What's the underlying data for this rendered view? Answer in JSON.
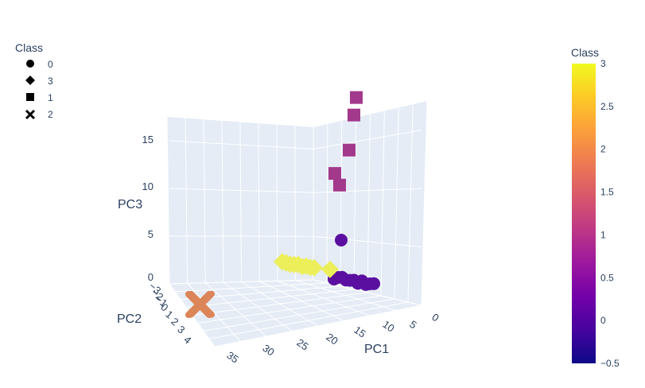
{
  "legend": {
    "title": "Class",
    "items": [
      {
        "symbol": "circle",
        "label": "0"
      },
      {
        "symbol": "diamond",
        "label": "3"
      },
      {
        "symbol": "square",
        "label": "1"
      },
      {
        "symbol": "x",
        "label": "2"
      }
    ]
  },
  "colorbar": {
    "title": "Class",
    "ticks": [
      "3",
      "2.5",
      "2",
      "1.5",
      "1",
      "0.5",
      "0",
      "−0.5"
    ],
    "colors": [
      "#f0f921",
      "#fdca26",
      "#fb9f3a",
      "#ed7953",
      "#d8576b",
      "#bd3786",
      "#9c179e",
      "#7201a8",
      "#46039f",
      "#0d0887"
    ]
  },
  "chart_data": {
    "type": "scatter",
    "title": "",
    "xlabel": "PC1",
    "ylabel": "PC2",
    "zlabel": "PC3",
    "x_ticks": [
      "0",
      "5",
      "10",
      "15",
      "20",
      "25",
      "30",
      "35"
    ],
    "y_ticks": [
      "−3",
      "−2",
      "−1",
      "0",
      "1",
      "2",
      "3",
      "4"
    ],
    "z_ticks": [
      "0",
      "5",
      "10",
      "15"
    ],
    "zlim": [
      0,
      17
    ],
    "class_colors": {
      "0": "#5a0fa0",
      "1": "#a3398b",
      "2": "#dc8559",
      "3": "#ecef5a"
    },
    "series": [
      {
        "name": "0",
        "symbol": "circle",
        "points": [
          {
            "x": 3,
            "y": -1.6,
            "z": 4.6
          },
          {
            "x": 4,
            "y": -1.0,
            "z": 0.4
          },
          {
            "x": 3,
            "y": -0.5,
            "z": 0.2
          },
          {
            "x": 5,
            "y": -1.2,
            "z": 0.3
          },
          {
            "x": 6,
            "y": -0.8,
            "z": 0.2
          },
          {
            "x": 7,
            "y": -0.9,
            "z": 0.1
          },
          {
            "x": 8,
            "y": -1.1,
            "z": 0.5
          },
          {
            "x": 9,
            "y": -0.6,
            "z": 0.2
          },
          {
            "x": 10,
            "y": -1.3,
            "z": 0.3
          },
          {
            "x": 11,
            "y": -0.7,
            "z": 0.2
          },
          {
            "x": 12,
            "y": -1.0,
            "z": 0.4
          },
          {
            "x": 13,
            "y": -1.2,
            "z": 0.1
          }
        ]
      },
      {
        "name": "3",
        "symbol": "diamond",
        "points": [
          {
            "x": 8,
            "y": -2.6,
            "z": 1.0
          },
          {
            "x": 9,
            "y": -2.4,
            "z": 0.8
          },
          {
            "x": 10,
            "y": -2.2,
            "z": 0.9
          },
          {
            "x": 11,
            "y": -2.3,
            "z": 0.7
          },
          {
            "x": 12,
            "y": -2.5,
            "z": 1.1
          },
          {
            "x": 13,
            "y": -2.1,
            "z": 0.8
          },
          {
            "x": 14,
            "y": -2.4,
            "z": 0.9
          },
          {
            "x": 15,
            "y": -2.2,
            "z": 1.0
          },
          {
            "x": 16,
            "y": -2.3,
            "z": 0.8
          },
          {
            "x": 20,
            "y": -2.6,
            "z": 0.6
          }
        ]
      },
      {
        "name": "1",
        "symbol": "square",
        "points": [
          {
            "x": 3,
            "y": -2.8,
            "z": 11.5
          },
          {
            "x": 4,
            "y": -2.6,
            "z": 13.5
          },
          {
            "x": 2,
            "y": -2.9,
            "z": 16.5
          },
          {
            "x": 1,
            "y": -2.7,
            "z": 18.0
          },
          {
            "x": 5,
            "y": -2.5,
            "z": 10.5
          }
        ]
      },
      {
        "name": "2",
        "symbol": "x",
        "points": [
          {
            "x": 33,
            "y": 0.3,
            "z": 0.2
          },
          {
            "x": 34,
            "y": 0.2,
            "z": 0.1
          }
        ]
      }
    ]
  }
}
